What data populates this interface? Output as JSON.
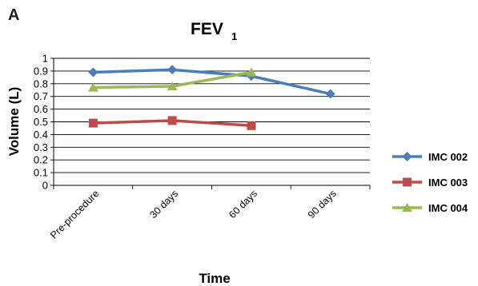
{
  "panel_label": "A",
  "chart_data": {
    "type": "line",
    "title": "FEV",
    "title_subscript": "1",
    "xlabel": "Time",
    "ylabel": "Volume (L)",
    "categories": [
      "Pre-procedure",
      "30 days",
      "60 days",
      "90 days"
    ],
    "ylim": [
      0,
      1
    ],
    "ytick_step": 0.1,
    "yticks": [
      "0",
      "0.1",
      "0.2",
      "0.3",
      "0.4",
      "0.5",
      "0.6",
      "0.7",
      "0.8",
      "0.9",
      "1"
    ],
    "grid": "horizontal",
    "legend_position": "right",
    "series": [
      {
        "name": "IMC 002",
        "color": "#4a7ebb",
        "marker": "diamond",
        "values": [
          0.89,
          0.91,
          0.86,
          0.72
        ]
      },
      {
        "name": "IMC 003",
        "color": "#be4b48",
        "marker": "square",
        "values": [
          0.49,
          0.51,
          0.47,
          null
        ]
      },
      {
        "name": "IMC 004",
        "color": "#98b954",
        "marker": "triangle",
        "values": [
          0.77,
          0.78,
          0.89,
          null
        ]
      }
    ]
  }
}
